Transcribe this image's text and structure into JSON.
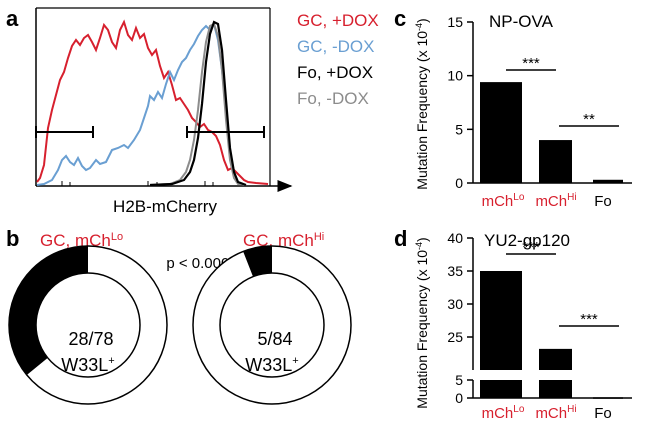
{
  "colors": {
    "red": "#d7202e",
    "blue": "#6a9fd2",
    "black": "#000000",
    "gray": "#8c8c8c"
  },
  "panels": {
    "a": "a",
    "b": "b",
    "c": "c",
    "d": "d"
  },
  "chart_data": [
    {
      "panel": "a",
      "type": "line",
      "xlabel": "H2B-mCherry",
      "series": [
        {
          "name": "GC, +DOX",
          "color": "#d7202e"
        },
        {
          "name": "GC, -DOX",
          "color": "#6a9fd2"
        },
        {
          "name": "Fo, +DOX",
          "color": "#000000"
        },
        {
          "name": "Fo, -DOX",
          "color": "#8c8c8c"
        }
      ]
    },
    {
      "panel": "b",
      "type": "pie",
      "p_value": "p < 0.0001",
      "donuts": [
        {
          "title": "GC, mCh",
          "title_sup": "Lo",
          "label_line1": "28/78",
          "label_line2": "W33L",
          "label_sup": "+",
          "numerator": 28,
          "denominator": 78
        },
        {
          "title": "GC, mCh",
          "title_sup": "Hi",
          "label_line1": "5/84",
          "label_line2": "W33L",
          "label_sup": "+",
          "numerator": 5,
          "denominator": 84
        }
      ]
    },
    {
      "panel": "c",
      "type": "bar",
      "title": "NP-OVA",
      "ylabel": "Mutation Frequency (x 10",
      "ylabel_sup": "-4",
      "ylabel_end": ")",
      "ylim": [
        0,
        15
      ],
      "yticks": [
        "0",
        "5",
        "10",
        "15"
      ],
      "categories": [
        {
          "base": "mCh",
          "sup": "Lo",
          "color": "#d7202e"
        },
        {
          "base": "mCh",
          "sup": "Hi",
          "color": "#d7202e"
        },
        {
          "base": "Fo",
          "sup": "",
          "color": "#000000"
        }
      ],
      "values": [
        9.4,
        4.0,
        0.3
      ],
      "significance": [
        "***",
        "**"
      ]
    },
    {
      "panel": "d",
      "type": "bar",
      "title": "YU2-gp120",
      "ylabel": "Mutation Frequency (x 10",
      "ylabel_sup": "-4",
      "ylabel_end": ")",
      "ylim": [
        0,
        40
      ],
      "axis_break": [
        5,
        20
      ],
      "yticks_lower": [
        "0",
        "5"
      ],
      "yticks_upper": [
        "25",
        "30",
        "35",
        "40"
      ],
      "categories": [
        {
          "base": "mCh",
          "sup": "Lo",
          "color": "#d7202e"
        },
        {
          "base": "mCh",
          "sup": "Hi",
          "color": "#d7202e"
        },
        {
          "base": "Fo",
          "sup": "",
          "color": "#000000"
        }
      ],
      "values": [
        35,
        23.2,
        0.2
      ],
      "significance": [
        "***",
        "***"
      ]
    }
  ]
}
